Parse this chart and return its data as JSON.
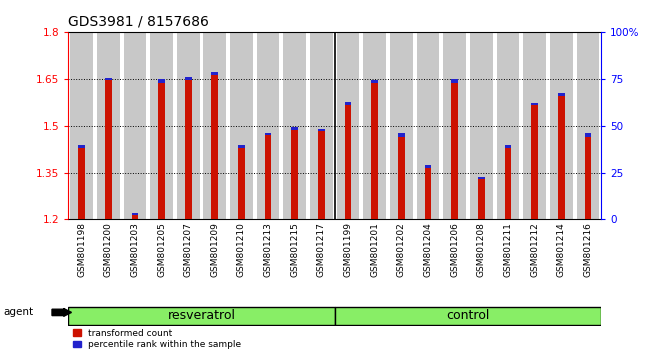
{
  "title": "GDS3981 / 8157686",
  "samples": [
    "GSM801198",
    "GSM801200",
    "GSM801203",
    "GSM801205",
    "GSM801207",
    "GSM801209",
    "GSM801210",
    "GSM801213",
    "GSM801215",
    "GSM801217",
    "GSM801199",
    "GSM801201",
    "GSM801202",
    "GSM801204",
    "GSM801206",
    "GSM801208",
    "GSM801211",
    "GSM801212",
    "GSM801214",
    "GSM801216"
  ],
  "red_values": [
    1.43,
    1.645,
    1.215,
    1.638,
    1.645,
    1.662,
    1.43,
    1.47,
    1.487,
    1.482,
    1.565,
    1.638,
    1.465,
    1.365,
    1.638,
    1.328,
    1.43,
    1.565,
    1.595,
    1.465
  ],
  "blue_values": [
    0.008,
    0.008,
    0.006,
    0.01,
    0.01,
    0.01,
    0.007,
    0.008,
    0.008,
    0.008,
    0.01,
    0.008,
    0.01,
    0.01,
    0.01,
    0.007,
    0.008,
    0.008,
    0.01,
    0.01
  ],
  "group_labels": [
    "resveratrol",
    "control"
  ],
  "agent_label": "agent",
  "y_min": 1.2,
  "y_max": 1.8,
  "y_ticks": [
    1.2,
    1.35,
    1.5,
    1.65,
    1.8
  ],
  "y2_ticks": [
    0,
    25,
    50,
    75,
    100
  ],
  "y2_tick_labels": [
    "0",
    "25",
    "50",
    "75",
    "100%"
  ],
  "bar_color_red": "#CC1100",
  "bar_color_blue": "#2222CC",
  "background_bar": "#C8C8C8",
  "background_group": "#88EE66",
  "legend_red": "transformed count",
  "legend_blue": "percentile rank within the sample",
  "title_fontsize": 10,
  "tick_fontsize": 6.5,
  "group_fontsize": 9,
  "n_resveratrol": 10,
  "n_control": 10
}
